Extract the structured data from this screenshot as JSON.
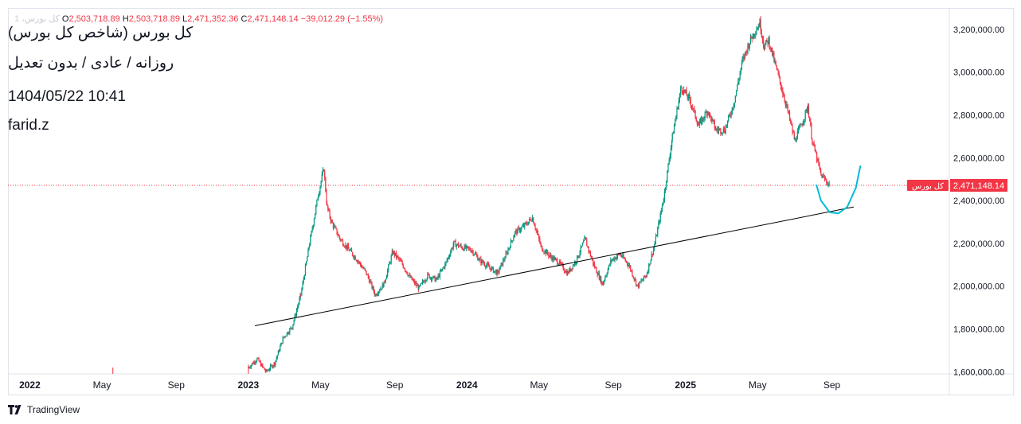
{
  "header": {
    "symbol_short": "1 ،کل بورس",
    "open_label": "O",
    "open_value": "2,503,718.89",
    "high_label": "H",
    "high_value": "2,503,718.89",
    "low_label": "L",
    "low_value": "2,471,352.36",
    "close_label": "C",
    "close_value": "2,471,148.14",
    "change": "−39,012.29 (−1.55%)"
  },
  "annotations": {
    "title": "کل بورس (شاخص کل بورس)",
    "subtitle": "روزانه / عادی / بدون تعدیل",
    "datetime": "1404/05/22 10:41",
    "author": "farid.z"
  },
  "price_tag": {
    "name": "کل بورس",
    "value": "2,471,148.14"
  },
  "brand": "TradingView",
  "colors": {
    "up": "#089981",
    "down": "#f23645",
    "projection": "#00bcd4",
    "trendline": "#000000",
    "last_price_line": "#f23645"
  },
  "chart_data": {
    "type": "candlestick",
    "title": "کل بورس (شاخص کل بورس)",
    "interval": "daily",
    "y_ticks": [
      {
        "value": 1600000,
        "label": "1,600,000.00"
      },
      {
        "value": 1800000,
        "label": "1,800,000.00"
      },
      {
        "value": 2000000,
        "label": "2,000,000.00"
      },
      {
        "value": 2200000,
        "label": "2,200,000.00"
      },
      {
        "value": 2400000,
        "label": "2,400,000.00"
      },
      {
        "value": 2600000,
        "label": "2,600,000.00"
      },
      {
        "value": 2800000,
        "label": "2,800,000.00"
      },
      {
        "value": 3000000,
        "label": "3,000,000.00"
      },
      {
        "value": 3200000,
        "label": "3,200,000.00"
      }
    ],
    "ylim": [
      1590000,
      3300000
    ],
    "x_ticks": [
      {
        "t": 2022.0,
        "label": "2022"
      },
      {
        "t": 2022.33,
        "label": "May"
      },
      {
        "t": 2022.67,
        "label": "Sep"
      },
      {
        "t": 2023.0,
        "label": "2023"
      },
      {
        "t": 2023.33,
        "label": "May"
      },
      {
        "t": 2023.67,
        "label": "Sep"
      },
      {
        "t": 2024.0,
        "label": "2024"
      },
      {
        "t": 2024.33,
        "label": "May"
      },
      {
        "t": 2024.67,
        "label": "Sep"
      },
      {
        "t": 2025.0,
        "label": "2025"
      },
      {
        "t": 2025.33,
        "label": "May"
      },
      {
        "t": 2025.67,
        "label": "Sep"
      }
    ],
    "xlim": [
      2021.9,
      2026.2
    ],
    "series": [
      {
        "t": [
          2022.38,
          2023.0,
          2023.04,
          2023.08,
          2023.12,
          2023.16,
          2023.2,
          2023.24,
          2023.28,
          2023.32,
          2023.345,
          2023.36,
          2023.38,
          2023.42,
          2023.46,
          2023.5,
          2023.54,
          2023.58,
          2023.62,
          2023.66,
          2023.7,
          2023.74,
          2023.78,
          2023.82,
          2023.86,
          2023.9,
          2023.94,
          2023.98,
          2024.02,
          2024.06,
          2024.1,
          2024.14,
          2024.18,
          2024.22,
          2024.26,
          2024.3,
          2024.34,
          2024.38,
          2024.42,
          2024.46,
          2024.5,
          2024.54,
          2024.58,
          2024.62,
          2024.66,
          2024.7,
          2024.74,
          2024.78,
          2024.82,
          2024.86,
          2024.9,
          2024.94,
          2024.98,
          2025.02,
          2025.06,
          2025.1,
          2025.14,
          2025.18,
          2025.22,
          2025.26,
          2025.3,
          2025.34,
          2025.36,
          2025.38,
          2025.42,
          2025.46,
          2025.5,
          2025.54,
          2025.56,
          2025.58,
          2025.62,
          2025.66
        ],
        "close": [
          1610000,
          1620000,
          1660000,
          1600000,
          1640000,
          1760000,
          1810000,
          1960000,
          2200000,
          2430000,
          2550000,
          2370000,
          2300000,
          2220000,
          2170000,
          2120000,
          2060000,
          1960000,
          2010000,
          2160000,
          2110000,
          2040000,
          1990000,
          2050000,
          2030000,
          2100000,
          2200000,
          2180000,
          2170000,
          2120000,
          2090000,
          2060000,
          2150000,
          2250000,
          2280000,
          2320000,
          2180000,
          2140000,
          2110000,
          2060000,
          2120000,
          2220000,
          2100000,
          2010000,
          2120000,
          2150000,
          2100000,
          2000000,
          2050000,
          2200000,
          2410000,
          2700000,
          2930000,
          2870000,
          2750000,
          2820000,
          2730000,
          2730000,
          2850000,
          3050000,
          3160000,
          3230000,
          3120000,
          3150000,
          3000000,
          2850000,
          2680000,
          2780000,
          2840000,
          2680000,
          2520000,
          2471148
        ]
      }
    ],
    "trendline": {
      "t": [
        2023.03,
        2025.77
      ],
      "value": [
        1815000,
        2370000
      ]
    },
    "projection": {
      "t": [
        2025.6,
        2025.62,
        2025.66,
        2025.7,
        2025.74,
        2025.78,
        2025.8
      ],
      "value": [
        2471000,
        2400000,
        2345000,
        2340000,
        2370000,
        2460000,
        2560000
      ]
    },
    "last_price": 2471148.14
  }
}
